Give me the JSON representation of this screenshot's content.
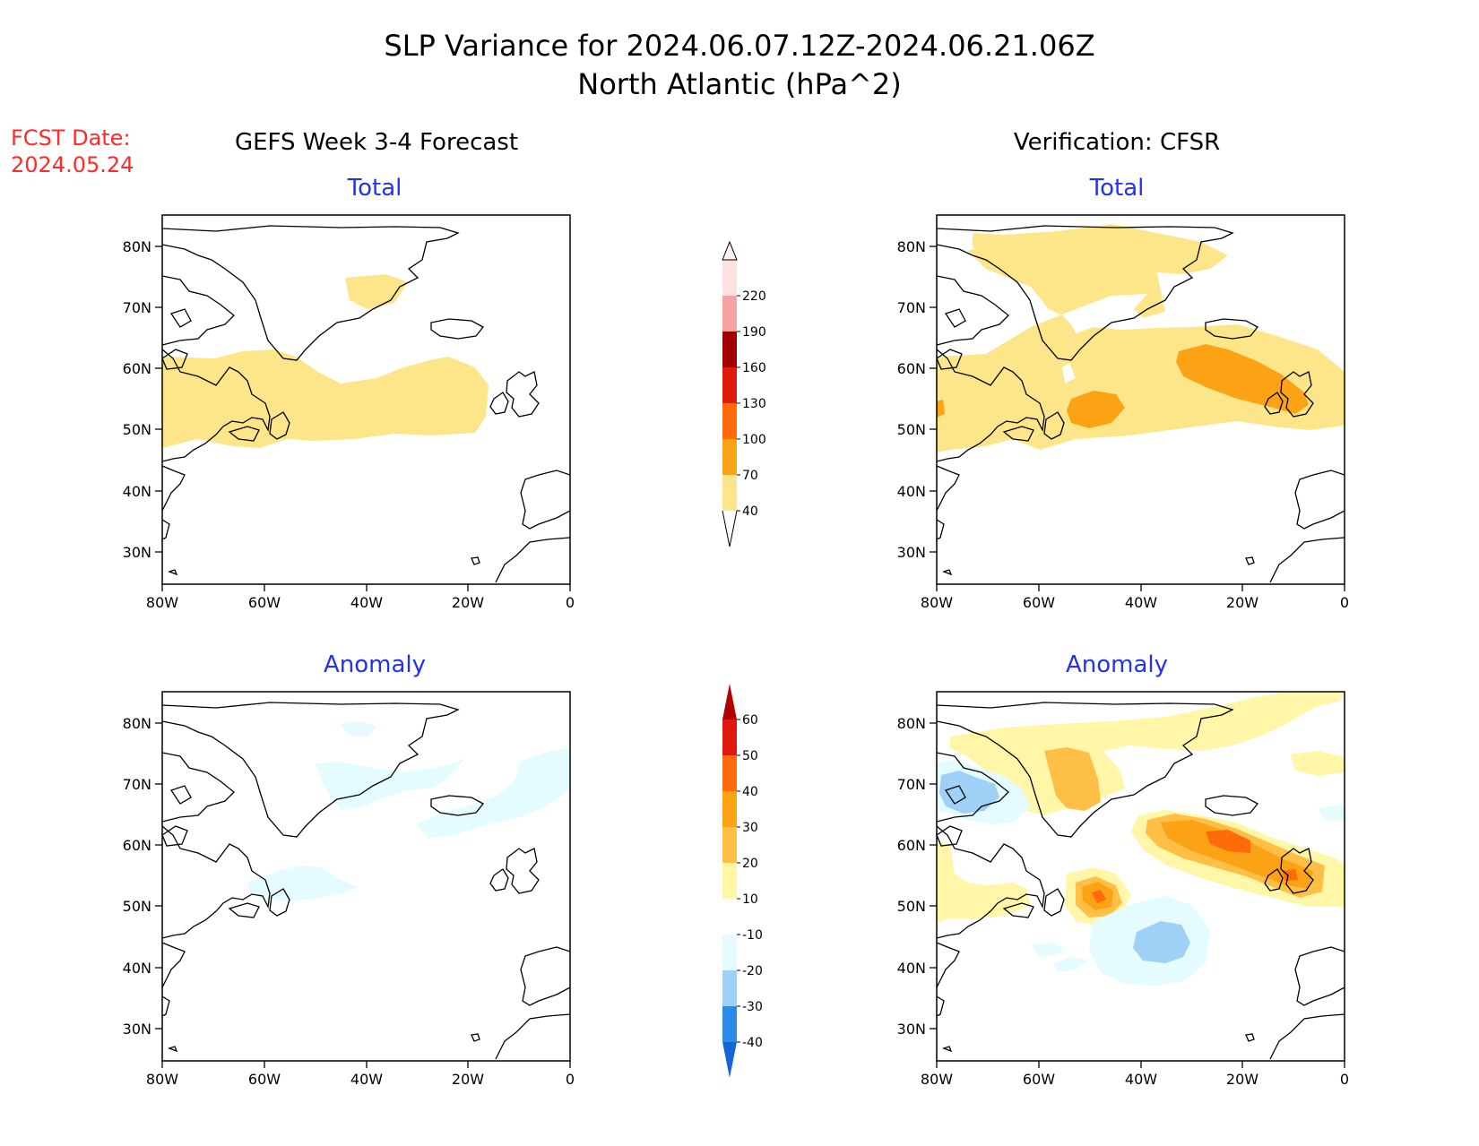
{
  "title": {
    "line1": "SLP Variance for 2024.06.07.12Z-2024.06.21.06Z",
    "line2": "North Atlantic (hPa^2)"
  },
  "fcst_date": {
    "label": "FCST Date:",
    "value": "2024.05.24"
  },
  "columns": {
    "left": "GEFS Week 3-4 Forecast",
    "right": "Verification: CFSR"
  },
  "panel_titles": {
    "total": "Total",
    "anomaly": "Anomaly"
  },
  "axes": {
    "lat_ticks": [
      "80N",
      "70N",
      "60N",
      "50N",
      "40N",
      "30N"
    ],
    "lon_ticks": [
      "80W",
      "60W",
      "40W",
      "20W",
      "0"
    ]
  },
  "colors": {
    "title_red": "#ff2a2a",
    "panel_title_blue": "#2233ee",
    "land_line": "#000000"
  },
  "colorbars": {
    "total": {
      "levels": [
        "40",
        "70",
        "100",
        "130",
        "160",
        "190",
        "220"
      ],
      "colors": [
        "#fde68a",
        "#fba314",
        "#ff6a0a",
        "#e0190c",
        "#a00000",
        "#f4a3a3",
        "#fde1e1"
      ]
    },
    "anomaly": {
      "levels": [
        "-40",
        "-30",
        "-20",
        "-10",
        "10",
        "20",
        "30",
        "40",
        "50",
        "60"
      ],
      "colors": [
        "#1565d8",
        "#2c8ae8",
        "#9fd0f5",
        "#e4fbff",
        "#ffffff",
        "#fff6a8",
        "#fdbf45",
        "#fba314",
        "#ff6a0a",
        "#e0190c",
        "#b00000"
      ]
    }
  }
}
